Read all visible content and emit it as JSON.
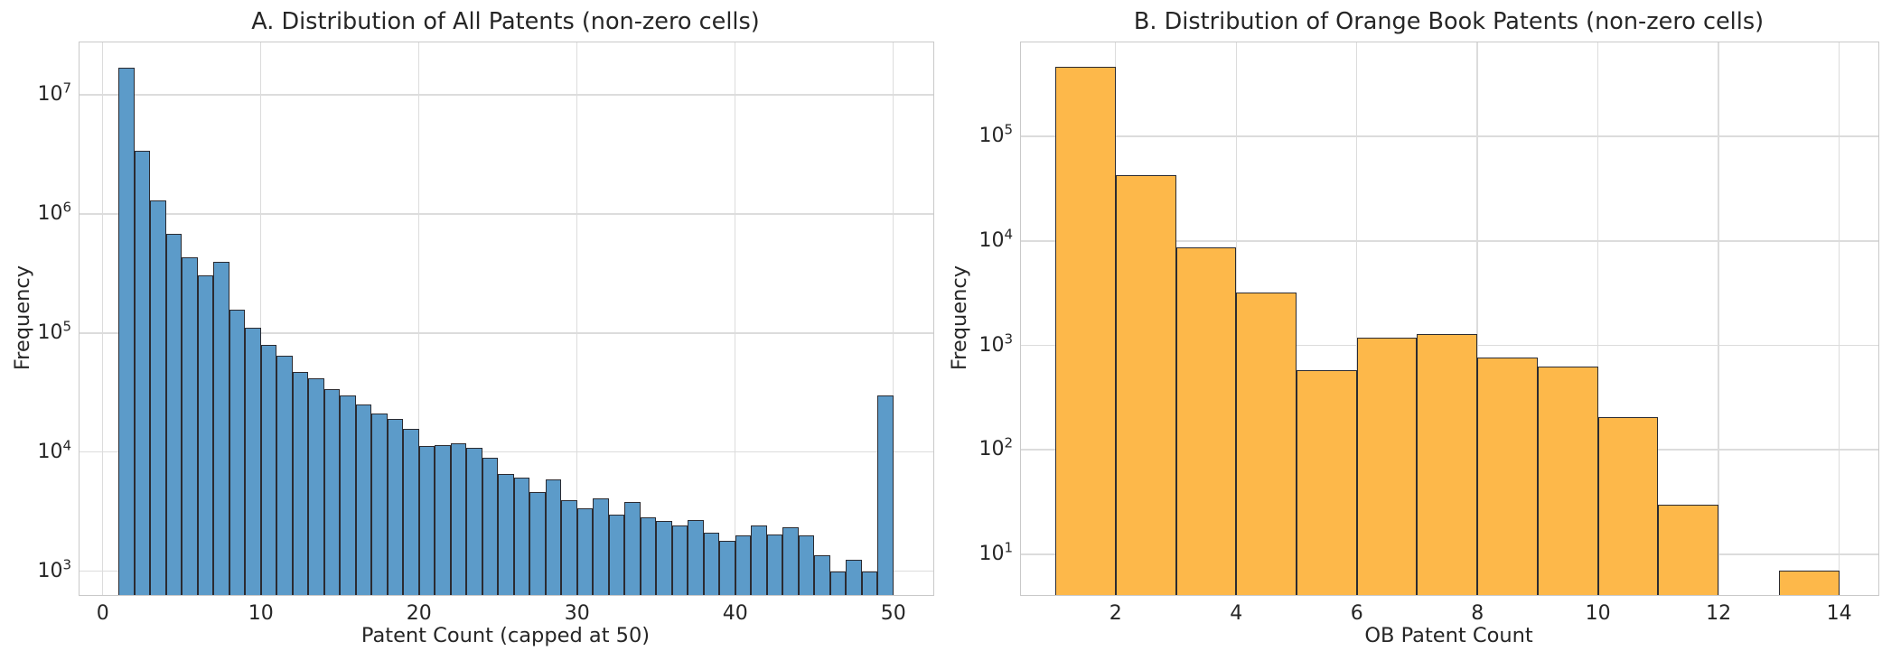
{
  "figure": {
    "background_color": "#ffffff",
    "grid_color": "#dcdcdc",
    "spine_color": "#c9c9c9",
    "text_color": "#262626"
  },
  "chart_data": [
    {
      "id": "all-patents-histogram",
      "type": "bar",
      "title": "A. Distribution of All Patents (non-zero cells)",
      "xlabel": "Patent Count (capped at 50)",
      "ylabel": "Frequency",
      "yscale": "log",
      "grid": true,
      "legend_position": "none",
      "bar_color": "#5c9bc9",
      "bar_edge_color": "#2b2b31",
      "bin_width": 1,
      "bin_starts": [
        1,
        2,
        3,
        4,
        5,
        6,
        7,
        8,
        9,
        10,
        11,
        12,
        13,
        14,
        15,
        16,
        17,
        18,
        19,
        20,
        21,
        22,
        23,
        24,
        25,
        26,
        27,
        28,
        29,
        30,
        31,
        32,
        33,
        34,
        35,
        36,
        37,
        38,
        39,
        40,
        41,
        42,
        43,
        44,
        45,
        46,
        47,
        48,
        49
      ],
      "frequencies": [
        16800000,
        3400000,
        1300000,
        685000,
        430000,
        307000,
        395000,
        156000,
        111000,
        79000,
        64000,
        47000,
        42000,
        34000,
        30000,
        25000,
        21000,
        19000,
        15700,
        11200,
        11500,
        11800,
        10800,
        8900,
        6500,
        6100,
        4600,
        5900,
        3950,
        3400,
        4050,
        3000,
        3800,
        2850,
        2650,
        2400,
        2700,
        2100,
        1800,
        2000,
        2400,
        2050,
        2350,
        2000,
        1350,
        1000,
        1250,
        1000,
        30000
      ],
      "xticks": [
        0,
        10,
        20,
        30,
        40,
        50
      ],
      "ytick_exponents": [
        3,
        4,
        5,
        6,
        7
      ],
      "xlim": [
        -1.47,
        52.53
      ],
      "ylog_lim": [
        2.8,
        7.44
      ]
    },
    {
      "id": "orange-book-patents-histogram",
      "type": "bar",
      "title": "B. Distribution of Orange Book Patents (non-zero cells)",
      "xlabel": "OB Patent Count",
      "ylabel": "Frequency",
      "yscale": "log",
      "grid": true,
      "legend_position": "none",
      "bar_color": "#fdb84a",
      "bar_edge_color": "#2b2b31",
      "bin_width": 1,
      "bin_starts": [
        1,
        2,
        3,
        4,
        5,
        6,
        7,
        8,
        9,
        10,
        11,
        12,
        13
      ],
      "frequencies": [
        460000,
        43000,
        8700,
        3200,
        580,
        1180,
        1270,
        760,
        630,
        205,
        30,
        0,
        7
      ],
      "xticks": [
        2,
        4,
        6,
        8,
        10,
        12,
        14
      ],
      "ytick_exponents": [
        1,
        2,
        3,
        4,
        5
      ],
      "xlim": [
        0.43,
        14.65
      ],
      "ylog_lim": [
        0.61,
        5.9
      ]
    }
  ]
}
